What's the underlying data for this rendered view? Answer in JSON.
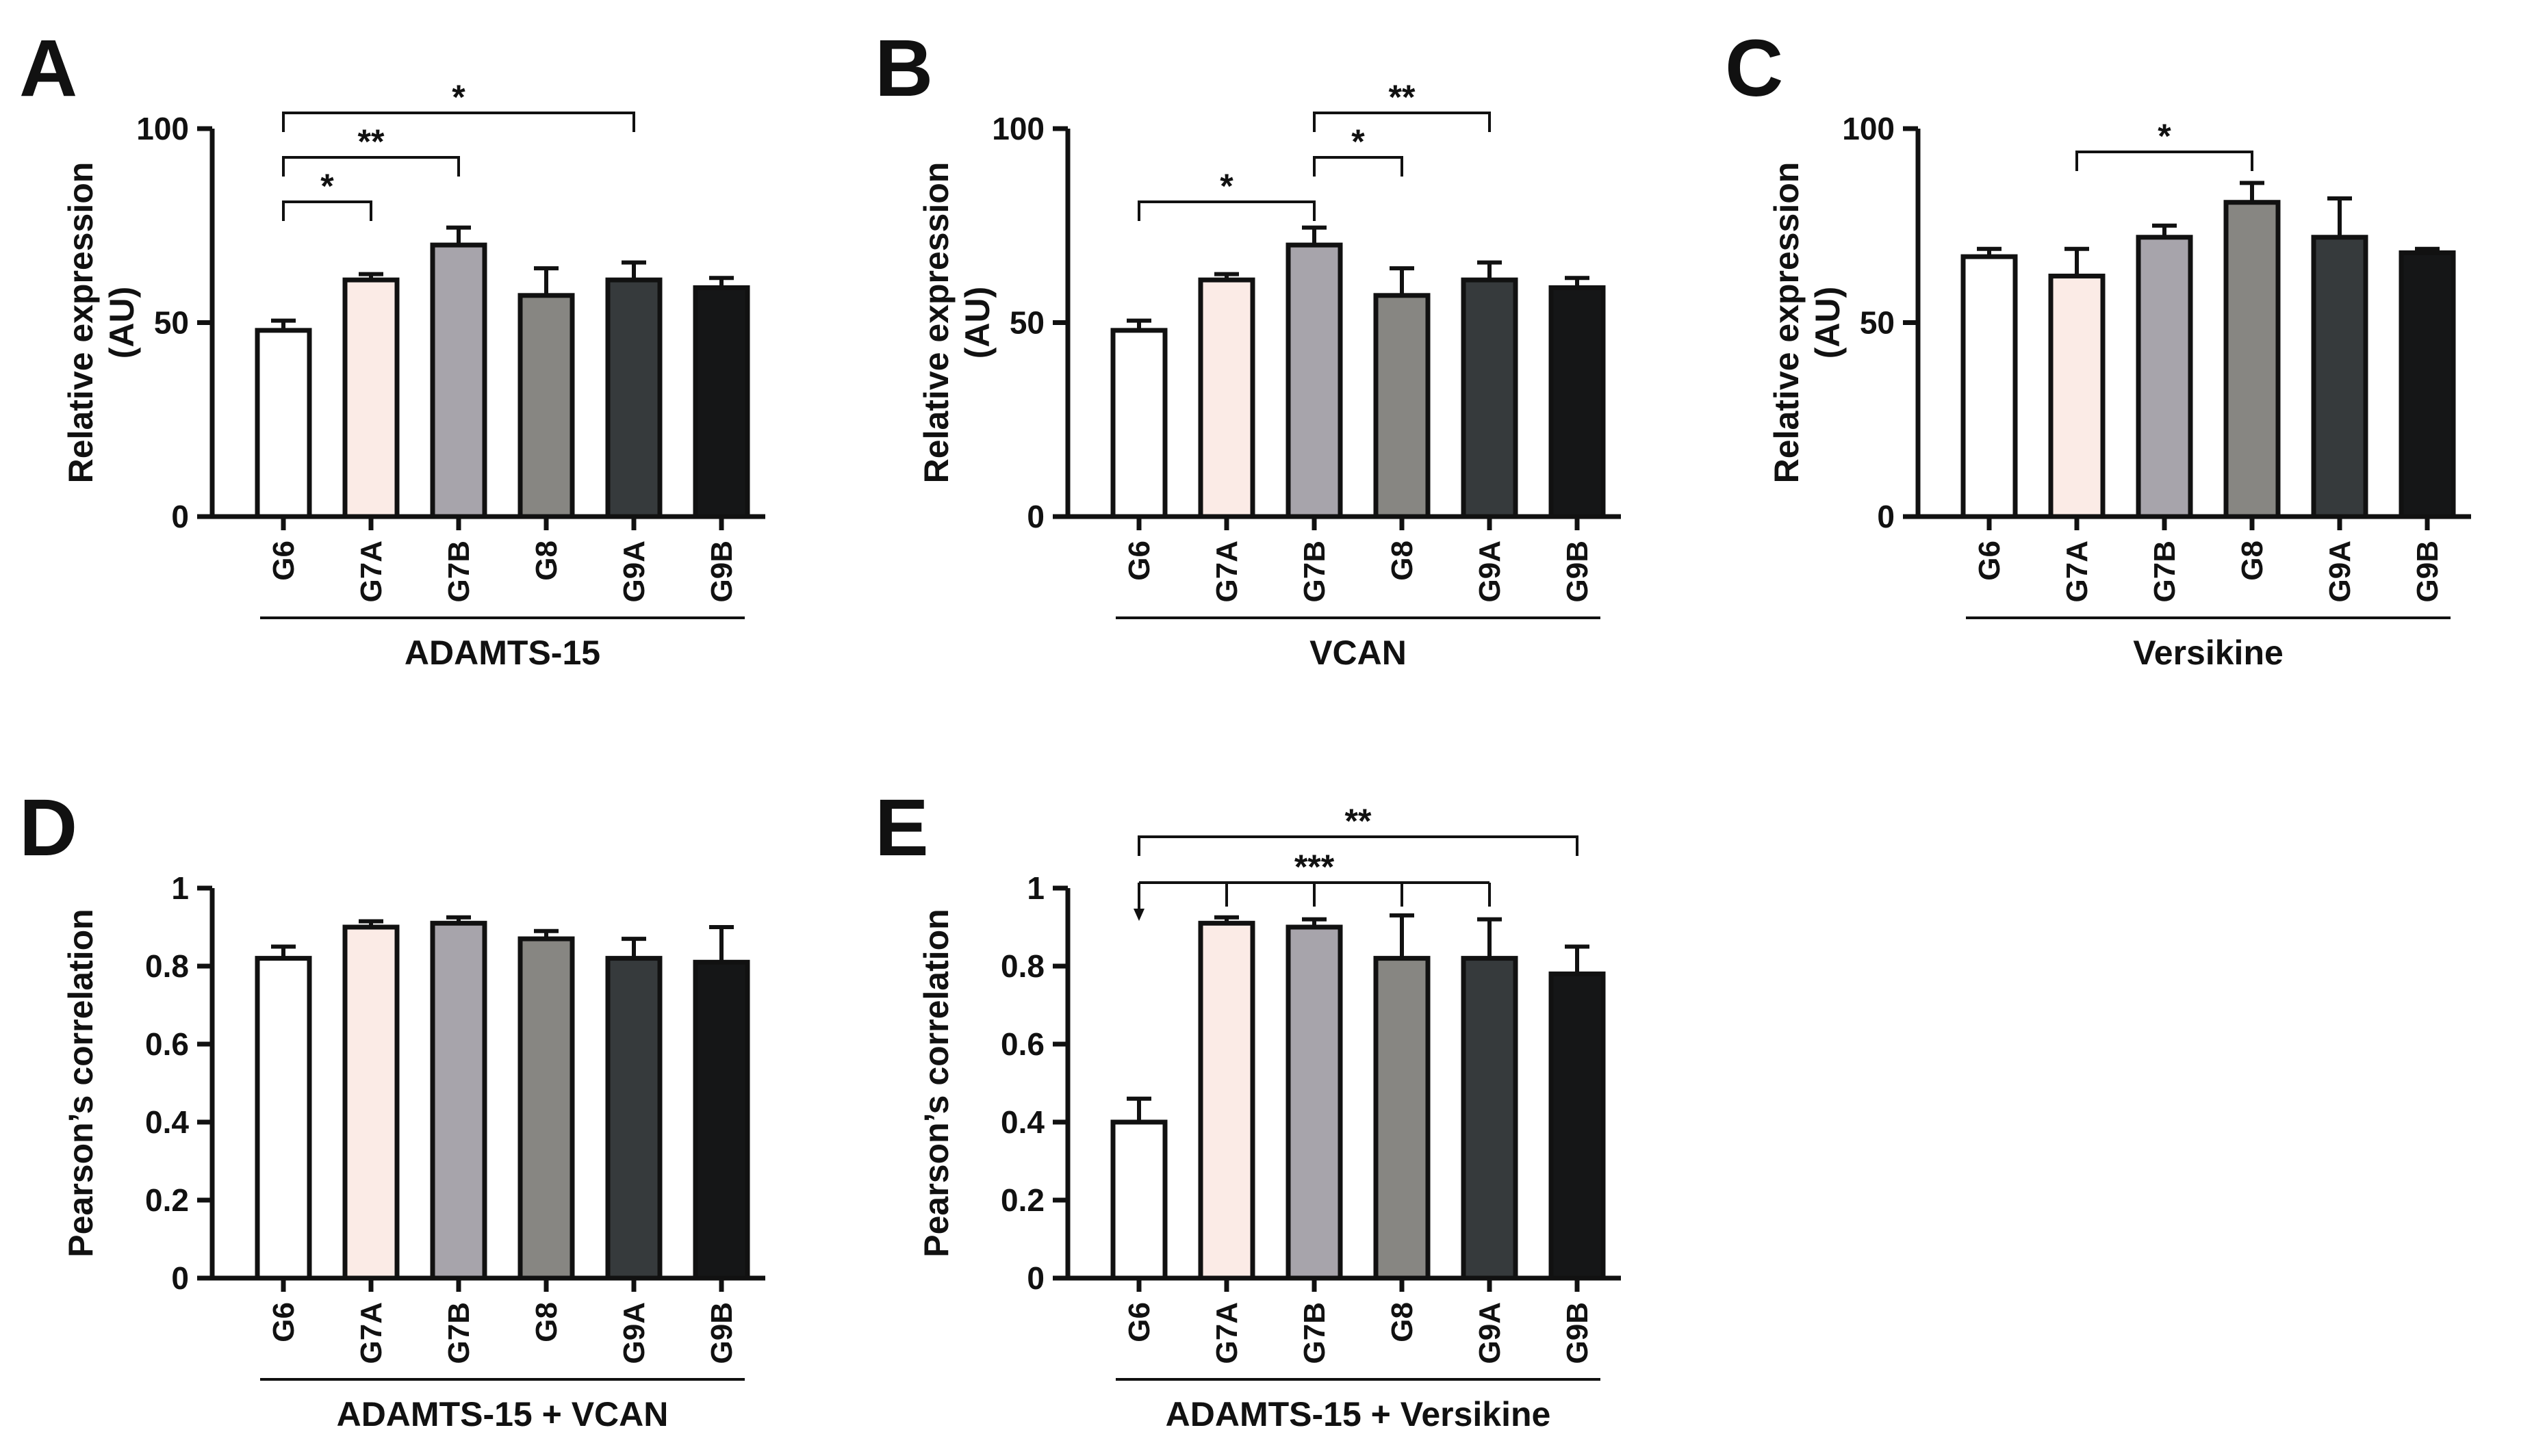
{
  "figure": {
    "group_labels": [
      "G6",
      "G7A",
      "G7B",
      "G8",
      "G9A",
      "G9B"
    ],
    "bar_colors": [
      "#ffffff",
      "#fbebe6",
      "#a7a4ab",
      "#878682",
      "#363a3c",
      "#151617"
    ],
    "axis_color": "#111111"
  },
  "chart_data": [
    {
      "panel": "A",
      "type": "bar",
      "title": "",
      "xlabel": "ADAMTS-15",
      "ylabel": [
        "Relative expression",
        "(AU)"
      ],
      "ylim": [
        0,
        100
      ],
      "yticks": [
        0,
        50,
        100
      ],
      "ytick_labels": [
        "0",
        "50",
        "100"
      ],
      "categories": [
        "G6",
        "G7A",
        "G7B",
        "G8",
        "G9A",
        "G9B"
      ],
      "values": [
        48,
        61,
        70,
        57,
        61,
        59
      ],
      "errors": [
        2.5,
        1.5,
        4.5,
        7,
        4.5,
        2.5
      ],
      "significance": [
        {
          "from": "G6",
          "to": "G7A",
          "label": "*",
          "level": 0
        },
        {
          "from": "G6",
          "to": "G7B",
          "label": "**",
          "level": 1
        },
        {
          "from": "G6",
          "to": "G9A",
          "label": "*",
          "level": 2
        }
      ]
    },
    {
      "panel": "B",
      "type": "bar",
      "title": "",
      "xlabel": "VCAN",
      "ylabel": [
        "Relative expression",
        "(AU)"
      ],
      "ylim": [
        0,
        100
      ],
      "yticks": [
        0,
        50,
        100
      ],
      "ytick_labels": [
        "0",
        "50",
        "100"
      ],
      "categories": [
        "G6",
        "G7A",
        "G7B",
        "G8",
        "G9A",
        "G9B"
      ],
      "values": [
        48,
        61,
        70,
        57,
        61,
        59
      ],
      "errors": [
        2.5,
        1.5,
        4.5,
        7,
        4.5,
        2.5
      ],
      "significance": [
        {
          "from": "G6",
          "to": "G7B",
          "label": "*",
          "level": 0
        },
        {
          "from": "G7B",
          "to": "G8",
          "label": "*",
          "level": 1
        },
        {
          "from": "G7B",
          "to": "G9A",
          "label": "**",
          "level": 2
        }
      ]
    },
    {
      "panel": "C",
      "type": "bar",
      "title": "",
      "xlabel": "Versikine",
      "ylabel": [
        "Relative expression",
        "(AU)"
      ],
      "ylim": [
        0,
        100
      ],
      "yticks": [
        0,
        50,
        100
      ],
      "ytick_labels": [
        "0",
        "50",
        "100"
      ],
      "categories": [
        "G6",
        "G7A",
        "G7B",
        "G8",
        "G9A",
        "G9B"
      ],
      "values": [
        67,
        62,
        72,
        81,
        72,
        68
      ],
      "errors": [
        2,
        7,
        3,
        5,
        10,
        1
      ],
      "significance": [
        {
          "from": "G7A",
          "to": "G8",
          "label": "*",
          "level": 0
        }
      ]
    },
    {
      "panel": "D",
      "type": "bar",
      "title": "",
      "xlabel": "ADAMTS-15 + VCAN",
      "ylabel": [
        "Pearson’s correlation"
      ],
      "ylim": [
        0,
        1
      ],
      "yticks": [
        0,
        0.2,
        0.4,
        0.6,
        0.8,
        1
      ],
      "ytick_labels": [
        "0",
        "0.2",
        "0.4",
        "0.6",
        "0.8",
        "1"
      ],
      "categories": [
        "G6",
        "G7A",
        "G7B",
        "G8",
        "G9A",
        "G9B"
      ],
      "values": [
        0.82,
        0.9,
        0.91,
        0.87,
        0.82,
        0.81
      ],
      "errors": [
        0.03,
        0.015,
        0.015,
        0.02,
        0.05,
        0.09
      ],
      "significance": []
    },
    {
      "panel": "E",
      "type": "bar",
      "title": "",
      "xlabel": "ADAMTS-15 + Versikine",
      "ylabel": [
        "Pearson’s correlation"
      ],
      "ylim": [
        0,
        1
      ],
      "yticks": [
        0,
        0.2,
        0.4,
        0.6,
        0.8,
        1
      ],
      "ytick_labels": [
        "0",
        "0.2",
        "0.4",
        "0.6",
        "0.8",
        "1"
      ],
      "categories": [
        "G6",
        "G7A",
        "G7B",
        "G8",
        "G9A",
        "G9B"
      ],
      "values": [
        0.4,
        0.91,
        0.9,
        0.82,
        0.82,
        0.78
      ],
      "errors": [
        0.06,
        0.015,
        0.02,
        0.11,
        0.1,
        0.07
      ],
      "significance": [
        {
          "from": "G6",
          "targets": [
            "G7A",
            "G7B",
            "G8",
            "G9A"
          ],
          "label": "***",
          "level": 0,
          "arrow": true
        },
        {
          "from": "G6",
          "to": "G9B",
          "label": "**",
          "level": 1
        }
      ]
    }
  ]
}
